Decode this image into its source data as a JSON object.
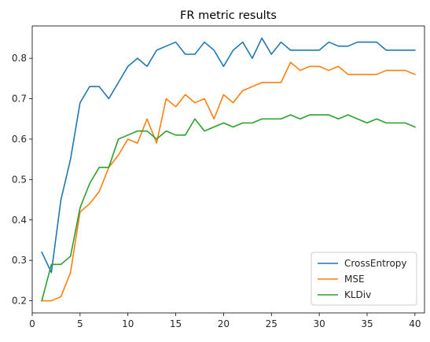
{
  "chart_data": {
    "type": "line",
    "title": "FR metric results",
    "xlabel": "",
    "ylabel": "",
    "xlim": [
      0,
      41
    ],
    "ylim": [
      0.17,
      0.88
    ],
    "xticks": [
      0,
      5,
      10,
      15,
      20,
      25,
      30,
      35,
      40
    ],
    "yticks": [
      0.2,
      0.3,
      0.4,
      0.5,
      0.6,
      0.7,
      0.8
    ],
    "grid": false,
    "legend_position": "lower-right",
    "x": [
      1,
      2,
      3,
      4,
      5,
      6,
      7,
      8,
      9,
      10,
      11,
      12,
      13,
      14,
      15,
      16,
      17,
      18,
      19,
      20,
      21,
      22,
      23,
      24,
      25,
      26,
      27,
      28,
      29,
      30,
      31,
      32,
      33,
      34,
      35,
      36,
      37,
      38,
      39,
      40
    ],
    "series": [
      {
        "name": "CrossEntropy",
        "color": "#1f77b4",
        "values": [
          0.32,
          0.27,
          0.45,
          0.55,
          0.69,
          0.73,
          0.73,
          0.7,
          0.74,
          0.78,
          0.8,
          0.78,
          0.82,
          0.83,
          0.84,
          0.81,
          0.81,
          0.84,
          0.82,
          0.78,
          0.82,
          0.84,
          0.8,
          0.85,
          0.81,
          0.84,
          0.82,
          0.82,
          0.82,
          0.82,
          0.84,
          0.83,
          0.83,
          0.84,
          0.84,
          0.84,
          0.82,
          0.82,
          0.82,
          0.82
        ]
      },
      {
        "name": "MSE",
        "color": "#ff7f0e",
        "values": [
          0.2,
          0.2,
          0.21,
          0.27,
          0.42,
          0.44,
          0.47,
          0.53,
          0.56,
          0.6,
          0.59,
          0.65,
          0.59,
          0.7,
          0.68,
          0.71,
          0.69,
          0.7,
          0.65,
          0.71,
          0.69,
          0.72,
          0.73,
          0.74,
          0.74,
          0.74,
          0.79,
          0.77,
          0.78,
          0.78,
          0.77,
          0.78,
          0.76,
          0.76,
          0.76,
          0.76,
          0.77,
          0.77,
          0.77,
          0.76
        ]
      },
      {
        "name": "KLDiv",
        "color": "#2ca02c",
        "values": [
          0.2,
          0.29,
          0.29,
          0.31,
          0.43,
          0.49,
          0.53,
          0.53,
          0.6,
          0.61,
          0.62,
          0.62,
          0.6,
          0.62,
          0.61,
          0.61,
          0.65,
          0.62,
          0.63,
          0.64,
          0.63,
          0.64,
          0.64,
          0.65,
          0.65,
          0.65,
          0.66,
          0.65,
          0.66,
          0.66,
          0.66,
          0.65,
          0.66,
          0.65,
          0.64,
          0.65,
          0.64,
          0.64,
          0.64,
          0.63
        ]
      }
    ]
  }
}
